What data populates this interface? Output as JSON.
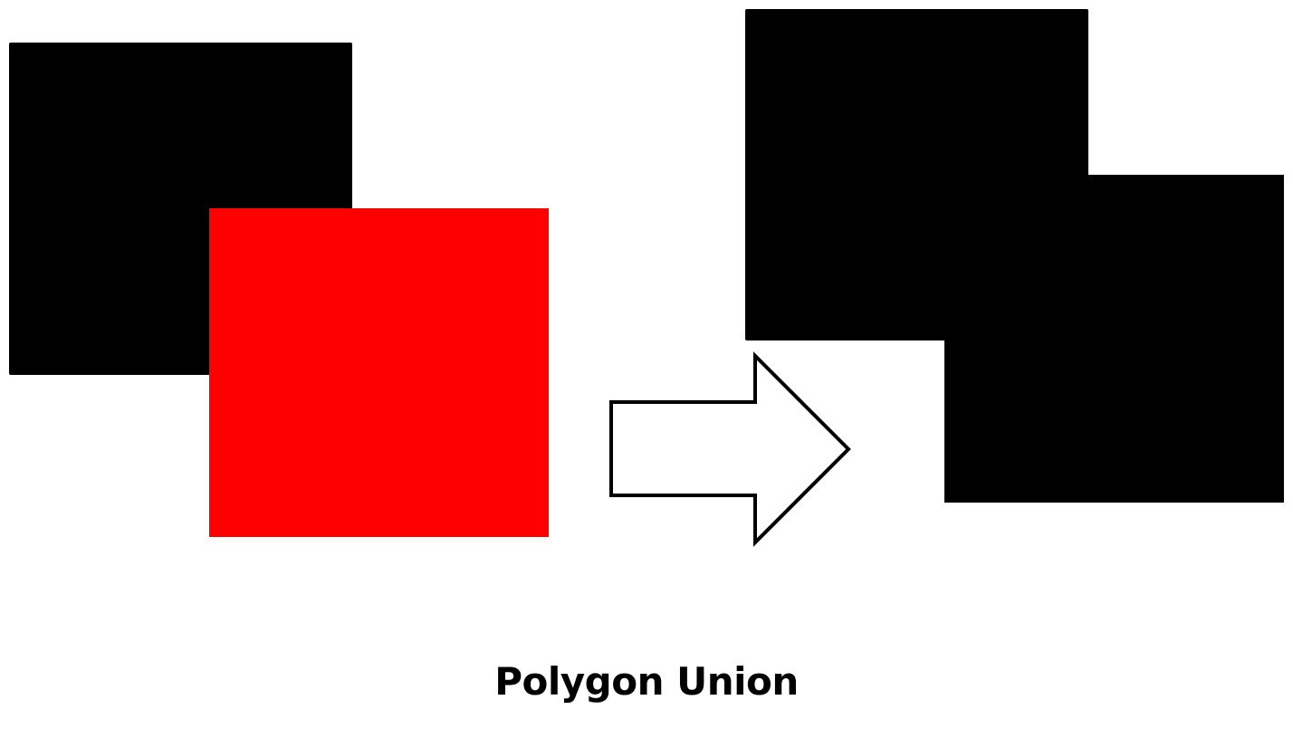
{
  "caption": "Polygon Union",
  "colors": {
    "input_polygon_a": "#000000",
    "input_polygon_b": "#ff0000",
    "result_polygon": "#000000",
    "arrow_fill": "#ffffff",
    "arrow_stroke": "#000000",
    "background": "#ffffff"
  }
}
